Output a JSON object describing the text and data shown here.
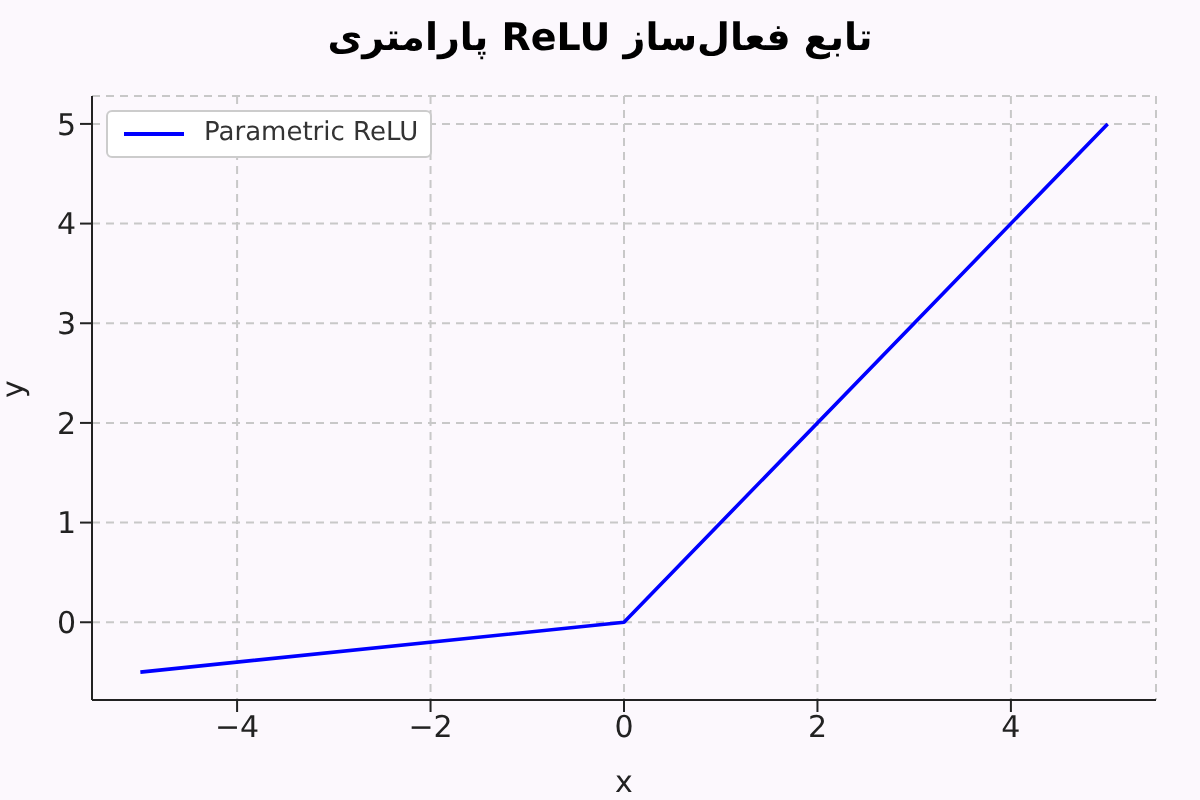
{
  "chart_data": {
    "type": "line",
    "title": "تابع فعال‌ساز ReLU پارامتری",
    "xlabel": "x",
    "ylabel": "y",
    "x": [
      -5,
      0,
      5
    ],
    "series": [
      {
        "name": "Parametric ReLU",
        "color": "#0000ff",
        "values": [
          -0.5,
          0,
          5
        ]
      }
    ],
    "xlim": [
      -5.5,
      5.5
    ],
    "xticks": [
      {
        "value": -4,
        "label": "−4"
      },
      {
        "value": -2,
        "label": "−2"
      },
      0,
      2,
      4
    ],
    "ylim": [
      -0.78,
      5.28
    ],
    "yticks": [
      0,
      1,
      2,
      3,
      4,
      5
    ],
    "grid": true,
    "legend": "top left",
    "marker": "none",
    "line_style": "solid"
  }
}
